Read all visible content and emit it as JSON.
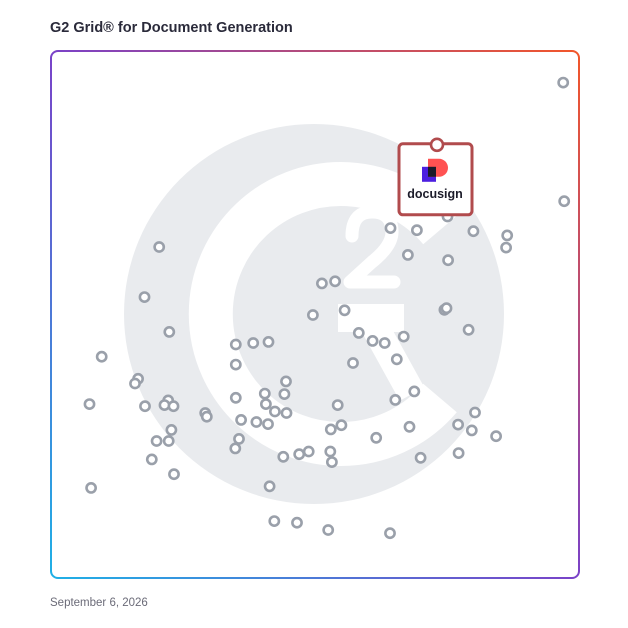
{
  "page": {
    "title": "G2 Grid® for Document Generation",
    "date": "September 6, 2026"
  },
  "chart_data": {
    "type": "scatter",
    "title": "G2 Grid® for Document Generation",
    "xlabel": "",
    "ylabel": "",
    "xlim": [
      0,
      100
    ],
    "ylim": [
      0,
      100
    ],
    "grid": "quadrants",
    "legend": "none",
    "colors": {
      "point": "#9aa0aa",
      "highlight": "#b14b4d",
      "watermark": "#e9ebee",
      "brand_purple": "#4c1fe0",
      "brand_red": "#ff5252"
    },
    "points": [
      {
        "x": 97.0,
        "y": 94.0
      },
      {
        "x": 97.2,
        "y": 71.5
      },
      {
        "x": 69.3,
        "y": 66.0
      },
      {
        "x": 75.1,
        "y": 68.6
      },
      {
        "x": 80.0,
        "y": 65.8
      },
      {
        "x": 64.3,
        "y": 66.4
      },
      {
        "x": 67.6,
        "y": 61.3
      },
      {
        "x": 86.4,
        "y": 65.0
      },
      {
        "x": 86.2,
        "y": 62.7
      },
      {
        "x": 75.2,
        "y": 60.3
      },
      {
        "x": 20.5,
        "y": 62.8
      },
      {
        "x": 17.7,
        "y": 53.3
      },
      {
        "x": 51.3,
        "y": 55.9
      },
      {
        "x": 53.8,
        "y": 56.3
      },
      {
        "x": 74.5,
        "y": 50.9
      },
      {
        "x": 74.9,
        "y": 51.2
      },
      {
        "x": 79.1,
        "y": 47.1
      },
      {
        "x": 55.6,
        "y": 50.8
      },
      {
        "x": 49.6,
        "y": 49.9
      },
      {
        "x": 22.4,
        "y": 46.7
      },
      {
        "x": 58.3,
        "y": 46.5
      },
      {
        "x": 60.9,
        "y": 45.0
      },
      {
        "x": 63.2,
        "y": 44.6
      },
      {
        "x": 66.8,
        "y": 45.8
      },
      {
        "x": 9.6,
        "y": 42.0
      },
      {
        "x": 35.0,
        "y": 44.3
      },
      {
        "x": 38.3,
        "y": 44.6
      },
      {
        "x": 41.2,
        "y": 44.8
      },
      {
        "x": 35.0,
        "y": 40.5
      },
      {
        "x": 57.2,
        "y": 40.8
      },
      {
        "x": 65.5,
        "y": 41.5
      },
      {
        "x": 16.5,
        "y": 37.8
      },
      {
        "x": 15.9,
        "y": 36.9
      },
      {
        "x": 44.5,
        "y": 37.3
      },
      {
        "x": 40.5,
        "y": 35.0
      },
      {
        "x": 44.2,
        "y": 34.9
      },
      {
        "x": 68.8,
        "y": 35.4
      },
      {
        "x": 35.0,
        "y": 34.2
      },
      {
        "x": 7.3,
        "y": 33.0
      },
      {
        "x": 17.8,
        "y": 32.6
      },
      {
        "x": 22.2,
        "y": 33.7
      },
      {
        "x": 21.5,
        "y": 32.8
      },
      {
        "x": 23.2,
        "y": 32.6
      },
      {
        "x": 54.3,
        "y": 32.8
      },
      {
        "x": 65.2,
        "y": 33.8
      },
      {
        "x": 40.7,
        "y": 33.0
      },
      {
        "x": 29.2,
        "y": 31.3
      },
      {
        "x": 29.5,
        "y": 30.6
      },
      {
        "x": 36.0,
        "y": 30.0
      },
      {
        "x": 38.9,
        "y": 29.6
      },
      {
        "x": 41.1,
        "y": 29.2
      },
      {
        "x": 42.4,
        "y": 31.6
      },
      {
        "x": 44.6,
        "y": 31.3
      },
      {
        "x": 55.0,
        "y": 29.0
      },
      {
        "x": 53.0,
        "y": 28.2
      },
      {
        "x": 67.9,
        "y": 28.7
      },
      {
        "x": 77.1,
        "y": 29.1
      },
      {
        "x": 79.7,
        "y": 28.0
      },
      {
        "x": 80.3,
        "y": 31.4
      },
      {
        "x": 84.3,
        "y": 26.9
      },
      {
        "x": 22.8,
        "y": 28.1
      },
      {
        "x": 20.0,
        "y": 26.0
      },
      {
        "x": 22.3,
        "y": 26.0
      },
      {
        "x": 35.6,
        "y": 26.4
      },
      {
        "x": 34.9,
        "y": 24.6
      },
      {
        "x": 61.6,
        "y": 26.6
      },
      {
        "x": 52.9,
        "y": 24.0
      },
      {
        "x": 48.8,
        "y": 24.0
      },
      {
        "x": 47.0,
        "y": 23.5
      },
      {
        "x": 44.0,
        "y": 23.0
      },
      {
        "x": 53.2,
        "y": 22.0
      },
      {
        "x": 19.1,
        "y": 22.5
      },
      {
        "x": 70.0,
        "y": 22.8
      },
      {
        "x": 77.2,
        "y": 23.7
      },
      {
        "x": 23.3,
        "y": 19.7
      },
      {
        "x": 7.6,
        "y": 17.1
      },
      {
        "x": 41.4,
        "y": 17.4
      },
      {
        "x": 42.3,
        "y": 10.8
      },
      {
        "x": 46.6,
        "y": 10.5
      },
      {
        "x": 52.5,
        "y": 9.1
      },
      {
        "x": 64.2,
        "y": 8.5
      }
    ],
    "highlight": {
      "x": 73.1,
      "y": 82.2,
      "label": "docusign"
    }
  }
}
